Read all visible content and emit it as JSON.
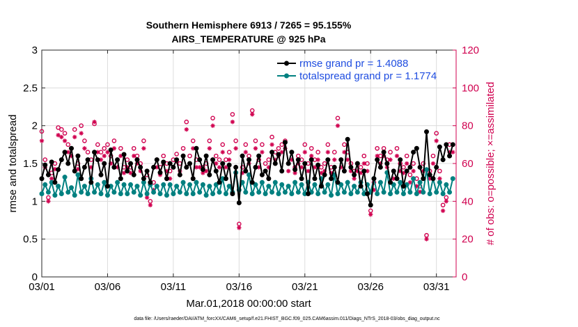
{
  "chart_data": {
    "type": "line",
    "title_line1": "Southern Hemisphere 6913 / 7265 = 95.155%",
    "title_line2": "AIRS_TEMPERATURE @ 925 hPa",
    "xlabel": "Mar.01,2018 00:00:00 start",
    "ylabel_left": "rmse and totalspread",
    "ylabel_right": "# of obs: o=possible; ×=assimilated",
    "ylim_left": [
      0,
      3
    ],
    "ylim_right": [
      0,
      120
    ],
    "xlim": [
      0,
      31.5
    ],
    "x_ticks": [
      0,
      5,
      10,
      15,
      20,
      25,
      30
    ],
    "x_tick_labels": [
      "03/01",
      "03/06",
      "03/11",
      "03/16",
      "03/21",
      "03/26",
      "03/31"
    ],
    "y_left_ticks": [
      0,
      0.5,
      1,
      1.5,
      2,
      2.5,
      3
    ],
    "y_left_tick_labels": [
      "0",
      "0.5",
      "1",
      "1.5",
      "2",
      "2.5",
      "3"
    ],
    "y_right_ticks": [
      0,
      20,
      40,
      60,
      80,
      100,
      120
    ],
    "y_right_tick_labels": [
      "0",
      "20",
      "40",
      "60",
      "80",
      "100",
      "120"
    ],
    "grid": true,
    "legend_position": "top-right",
    "footnote": "data file: /Users/raeder/DAI/ATM_forcXX/CAM6_setup/f.e21.FHIST_BGC.f09_025.CAM6assim.011/Diags_NTrS_2018-03/obs_diag_output.nc",
    "colors": {
      "rmse": "#000000",
      "spread": "#008080",
      "obs": "#d0004f"
    },
    "series": [
      {
        "name": "rmse grand pr = 1.4088",
        "x": [
          0.0,
          0.25,
          0.5,
          0.75,
          1.0,
          1.25,
          1.5,
          1.75,
          2.0,
          2.25,
          2.5,
          2.75,
          3.0,
          3.25,
          3.5,
          3.75,
          4.0,
          4.25,
          4.5,
          4.75,
          5.0,
          5.25,
          5.5,
          5.75,
          6.0,
          6.25,
          6.5,
          6.75,
          7.0,
          7.25,
          7.5,
          7.75,
          8.0,
          8.25,
          8.5,
          8.75,
          9.0,
          9.25,
          9.5,
          9.75,
          10.0,
          10.25,
          10.5,
          10.75,
          11.0,
          11.25,
          11.5,
          11.75,
          12.0,
          12.25,
          12.5,
          12.75,
          13.0,
          13.25,
          13.5,
          13.75,
          14.0,
          14.25,
          14.5,
          14.75,
          15.0,
          15.25,
          15.5,
          15.75,
          16.0,
          16.25,
          16.5,
          16.75,
          17.0,
          17.25,
          17.5,
          17.75,
          18.0,
          18.25,
          18.5,
          18.75,
          19.0,
          19.25,
          19.5,
          19.75,
          20.0,
          20.25,
          20.5,
          20.75,
          21.0,
          21.25,
          21.5,
          21.75,
          22.0,
          22.25,
          22.5,
          22.75,
          23.0,
          23.25,
          23.5,
          23.75,
          24.0,
          24.25,
          24.5,
          24.75,
          25.0,
          25.25,
          25.5,
          25.75,
          26.0,
          26.25,
          26.5,
          26.75,
          27.0,
          27.25,
          27.5,
          27.75,
          28.0,
          28.25,
          28.5,
          28.75,
          29.0,
          29.25,
          29.5,
          29.75,
          30.0,
          30.25,
          30.5,
          30.75,
          31.0,
          31.25
        ],
        "values": [
          1.3,
          1.48,
          1.35,
          1.52,
          1.25,
          1.42,
          1.55,
          1.65,
          1.5,
          1.7,
          1.4,
          1.6,
          1.3,
          1.45,
          1.55,
          1.25,
          1.65,
          1.55,
          1.35,
          1.5,
          1.2,
          1.68,
          1.45,
          1.55,
          1.3,
          1.62,
          1.4,
          1.5,
          1.35,
          1.55,
          1.45,
          1.3,
          1.4,
          1.25,
          1.45,
          1.55,
          1.38,
          1.52,
          1.3,
          1.5,
          1.45,
          1.55,
          1.35,
          1.6,
          1.45,
          1.5,
          1.3,
          1.7,
          1.55,
          1.42,
          1.6,
          1.35,
          1.55,
          1.4,
          1.25,
          1.5,
          1.3,
          1.48,
          1.1,
          1.45,
          0.98,
          1.6,
          1.4,
          1.55,
          1.25,
          1.45,
          1.6,
          1.35,
          1.4,
          1.3,
          1.65,
          1.5,
          1.62,
          1.4,
          1.78,
          1.5,
          1.65,
          1.42,
          1.55,
          1.3,
          1.5,
          1.1,
          1.55,
          1.3,
          1.48,
          1.2,
          1.35,
          1.55,
          1.3,
          1.45,
          1.25,
          1.55,
          1.4,
          1.82,
          1.45,
          1.35,
          1.5,
          1.2,
          1.4,
          1.1,
          0.95,
          1.3,
          1.55,
          1.45,
          1.65,
          1.5,
          1.25,
          1.4,
          1.3,
          1.55,
          1.2,
          1.4,
          1.45,
          1.65,
          1.7,
          1.45,
          1.3,
          1.92,
          1.35,
          1.3,
          1.45,
          1.72,
          1.55,
          1.75,
          1.6,
          1.75
        ]
      },
      {
        "name": "totalspread grand pr = 1.1774",
        "x": [
          0.0,
          0.25,
          0.5,
          0.75,
          1.0,
          1.25,
          1.5,
          1.75,
          2.0,
          2.25,
          2.5,
          2.75,
          3.0,
          3.25,
          3.5,
          3.75,
          4.0,
          4.25,
          4.5,
          4.75,
          5.0,
          5.25,
          5.5,
          5.75,
          6.0,
          6.25,
          6.5,
          6.75,
          7.0,
          7.25,
          7.5,
          7.75,
          8.0,
          8.25,
          8.5,
          8.75,
          9.0,
          9.25,
          9.5,
          9.75,
          10.0,
          10.25,
          10.5,
          10.75,
          11.0,
          11.25,
          11.5,
          11.75,
          12.0,
          12.25,
          12.5,
          12.75,
          13.0,
          13.25,
          13.5,
          13.75,
          14.0,
          14.25,
          14.5,
          14.75,
          15.0,
          15.25,
          15.5,
          15.75,
          16.0,
          16.25,
          16.5,
          16.75,
          17.0,
          17.25,
          17.5,
          17.75,
          18.0,
          18.25,
          18.5,
          18.75,
          19.0,
          19.25,
          19.5,
          19.75,
          20.0,
          20.25,
          20.5,
          20.75,
          21.0,
          21.25,
          21.5,
          21.75,
          22.0,
          22.25,
          22.5,
          22.75,
          23.0,
          23.25,
          23.5,
          23.75,
          24.0,
          24.25,
          24.5,
          24.75,
          25.0,
          25.25,
          25.5,
          25.75,
          26.0,
          26.25,
          26.5,
          26.75,
          27.0,
          27.25,
          27.5,
          27.75,
          28.0,
          28.25,
          28.5,
          28.75,
          29.0,
          29.25,
          29.5,
          29.75,
          30.0,
          30.25,
          30.5,
          30.75,
          31.0,
          31.25
        ],
        "values": [
          1.1,
          1.22,
          1.12,
          1.25,
          1.08,
          1.2,
          1.1,
          1.32,
          1.12,
          1.18,
          1.08,
          1.35,
          1.12,
          1.2,
          1.1,
          1.3,
          1.12,
          1.22,
          1.1,
          1.25,
          1.08,
          1.2,
          1.12,
          1.25,
          1.1,
          1.22,
          1.1,
          1.22,
          1.12,
          1.2,
          1.08,
          1.25,
          1.1,
          1.22,
          1.12,
          1.2,
          1.1,
          1.22,
          1.08,
          1.22,
          1.1,
          1.2,
          1.12,
          1.25,
          1.1,
          1.22,
          1.1,
          1.25,
          1.12,
          1.22,
          1.08,
          1.2,
          1.1,
          1.22,
          1.12,
          1.3,
          1.1,
          1.2,
          1.12,
          1.38,
          1.15,
          1.25,
          1.12,
          1.35,
          1.1,
          1.22,
          1.12,
          1.25,
          1.1,
          1.2,
          1.12,
          1.25,
          1.1,
          1.22,
          1.12,
          1.2,
          1.1,
          1.25,
          1.12,
          1.22,
          1.1,
          1.25,
          1.12,
          1.22,
          1.1,
          1.3,
          1.12,
          1.22,
          1.08,
          1.35,
          1.1,
          1.22,
          1.12,
          1.25,
          1.1,
          1.2,
          1.12,
          1.25,
          1.1,
          1.22,
          1.12,
          1.3,
          1.1,
          1.25,
          1.12,
          1.38,
          1.1,
          1.22,
          1.12,
          1.25,
          1.1,
          1.22,
          1.12,
          1.3,
          1.1,
          1.25,
          1.12,
          1.42,
          1.1,
          1.3,
          1.12,
          1.25,
          1.1,
          1.22,
          1.12,
          1.3
        ]
      },
      {
        "name": "obs possible",
        "x": [
          0.0,
          0.25,
          0.5,
          0.75,
          1.0,
          1.25,
          1.5,
          1.75,
          2.0,
          2.25,
          2.5,
          2.75,
          3.0,
          3.25,
          3.5,
          3.75,
          4.0,
          4.25,
          4.5,
          4.75,
          5.0,
          5.25,
          5.5,
          5.75,
          6.0,
          6.25,
          6.5,
          6.75,
          7.0,
          7.25,
          7.5,
          7.75,
          8.0,
          8.25,
          8.5,
          8.75,
          9.0,
          9.25,
          9.5,
          9.75,
          10.0,
          10.25,
          10.5,
          10.75,
          11.0,
          11.25,
          11.5,
          11.75,
          12.0,
          12.25,
          12.5,
          12.75,
          13.0,
          13.25,
          13.5,
          13.75,
          14.0,
          14.25,
          14.5,
          14.75,
          15.0,
          15.25,
          15.5,
          15.75,
          16.0,
          16.25,
          16.5,
          16.75,
          17.0,
          17.25,
          17.5,
          17.75,
          18.0,
          18.25,
          18.5,
          18.75,
          19.0,
          19.25,
          19.5,
          19.75,
          20.0,
          20.25,
          20.5,
          20.75,
          21.0,
          21.25,
          21.5,
          21.75,
          22.0,
          22.25,
          22.5,
          22.75,
          23.0,
          23.25,
          23.5,
          23.75,
          24.0,
          24.25,
          24.5,
          24.75,
          25.0,
          25.25,
          25.5,
          25.75,
          26.0,
          26.25,
          26.5,
          26.75,
          27.0,
          27.25,
          27.5,
          27.75,
          28.0,
          28.25,
          28.5,
          28.75,
          29.0,
          29.25,
          29.5,
          29.75,
          30.0,
          30.25,
          30.5,
          30.75,
          31.0,
          31.25
        ],
        "values": [
          77,
          62,
          42,
          55,
          60,
          79,
          78,
          76,
          70,
          68,
          78,
          60,
          80,
          72,
          66,
          62,
          81,
          70,
          66,
          68,
          70,
          64,
          72,
          62,
          68,
          58,
          62,
          58,
          68,
          64,
          60,
          72,
          54,
          40,
          50,
          62,
          58,
          64,
          60,
          56,
          62,
          65,
          60,
          68,
          82,
          64,
          72,
          62,
          62,
          58,
          60,
          72,
          84,
          64,
          62,
          70,
          62,
          66,
          86,
          72,
          28,
          58,
          70,
          64,
          88,
          72,
          62,
          70,
          60,
          62,
          74,
          66,
          68,
          70,
          72,
          60,
          66,
          58,
          64,
          62,
          70,
          60,
          68,
          62,
          66,
          58,
          60,
          70,
          58,
          66,
          84,
          62,
          70,
          66,
          60,
          56,
          60,
          58,
          64,
          60,
          35,
          50,
          68,
          64,
          68,
          62,
          66,
          56,
          68,
          60,
          58,
          64,
          54,
          60,
          52,
          48,
          60,
          22,
          56,
          64,
          76,
          56,
          38,
          42,
          70,
          70
        ]
      },
      {
        "name": "obs assimilated",
        "x": [
          0.0,
          0.25,
          0.5,
          0.75,
          1.0,
          1.25,
          1.5,
          1.75,
          2.0,
          2.25,
          2.5,
          2.75,
          3.0,
          3.25,
          3.5,
          3.75,
          4.0,
          4.25,
          4.5,
          4.75,
          5.0,
          5.25,
          5.5,
          5.75,
          6.0,
          6.25,
          6.5,
          6.75,
          7.0,
          7.25,
          7.5,
          7.75,
          8.0,
          8.25,
          8.5,
          8.75,
          9.0,
          9.25,
          9.5,
          9.75,
          10.0,
          10.25,
          10.5,
          10.75,
          11.0,
          11.25,
          11.5,
          11.75,
          12.0,
          12.25,
          12.5,
          12.75,
          13.0,
          13.25,
          13.5,
          13.75,
          14.0,
          14.25,
          14.5,
          14.75,
          15.0,
          15.25,
          15.5,
          15.75,
          16.0,
          16.25,
          16.5,
          16.75,
          17.0,
          17.25,
          17.5,
          17.75,
          18.0,
          18.25,
          18.5,
          18.75,
          19.0,
          19.25,
          19.5,
          19.75,
          20.0,
          20.25,
          20.5,
          20.75,
          21.0,
          21.25,
          21.5,
          21.75,
          22.0,
          22.25,
          22.5,
          22.75,
          23.0,
          23.25,
          23.5,
          23.75,
          24.0,
          24.25,
          24.5,
          24.75,
          25.0,
          25.25,
          25.5,
          25.75,
          26.0,
          26.25,
          26.5,
          26.75,
          27.0,
          27.25,
          27.5,
          27.75,
          28.0,
          28.25,
          28.5,
          28.75,
          29.0,
          29.25,
          29.5,
          29.75,
          30.0,
          30.25,
          30.5,
          30.75,
          31.0,
          31.25
        ],
        "values": [
          72,
          58,
          40,
          52,
          57,
          75,
          74,
          72,
          66,
          64,
          74,
          57,
          76,
          68,
          62,
          58,
          82,
          66,
          62,
          64,
          66,
          60,
          68,
          58,
          64,
          55,
          58,
          55,
          64,
          60,
          56,
          68,
          42,
          38,
          46,
          58,
          54,
          60,
          56,
          52,
          58,
          61,
          56,
          64,
          78,
          60,
          68,
          58,
          58,
          55,
          56,
          68,
          80,
          60,
          58,
          66,
          58,
          62,
          82,
          68,
          26,
          55,
          66,
          60,
          86,
          68,
          58,
          66,
          56,
          58,
          70,
          62,
          64,
          66,
          68,
          56,
          62,
          55,
          60,
          58,
          66,
          56,
          64,
          58,
          62,
          55,
          56,
          66,
          55,
          62,
          80,
          58,
          66,
          62,
          56,
          52,
          56,
          55,
          60,
          56,
          33,
          46,
          64,
          60,
          64,
          58,
          62,
          52,
          64,
          56,
          55,
          60,
          50,
          56,
          48,
          45,
          56,
          20,
          52,
          60,
          72,
          52,
          35,
          40,
          66,
          66
        ]
      }
    ]
  }
}
